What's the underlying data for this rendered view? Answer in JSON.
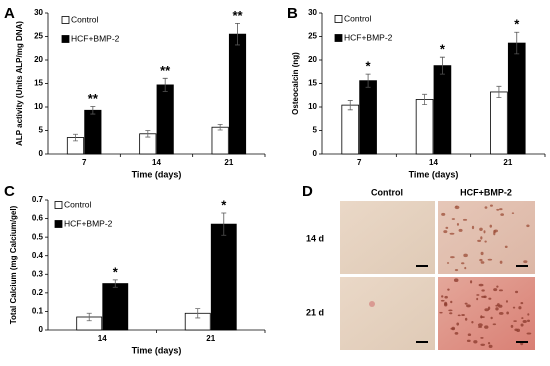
{
  "chart_data": [
    {
      "type": "bar",
      "panel_label": "A",
      "y_label": "ALP activity (Units ALP/mg DNA)",
      "x_label": "Time (days)",
      "categories": [
        "7",
        "14",
        "21"
      ],
      "series": [
        {
          "name": "Control",
          "color": "#ffffff",
          "values": [
            3.5,
            4.3,
            5.7
          ],
          "errors": [
            0.7,
            0.7,
            0.6
          ]
        },
        {
          "name": "HCF+BMP-2",
          "color": "#000000",
          "values": [
            9.3,
            14.7,
            25.5
          ],
          "errors": [
            0.8,
            1.4,
            2.3
          ]
        }
      ],
      "significance": [
        "**",
        "**",
        "**"
      ],
      "ylim": [
        0,
        30
      ],
      "yticks": [
        0,
        5,
        10,
        15,
        20,
        25,
        30
      ],
      "grid": false
    },
    {
      "type": "bar",
      "panel_label": "B",
      "y_label": "Osteocalcin (ng)",
      "x_label": "Time (days)",
      "categories": [
        "7",
        "14",
        "21"
      ],
      "series": [
        {
          "name": "Control",
          "color": "#ffffff",
          "values": [
            10.4,
            11.6,
            13.2
          ],
          "errors": [
            1.0,
            1.1,
            1.2
          ]
        },
        {
          "name": "HCF+BMP-2",
          "color": "#000000",
          "values": [
            15.6,
            18.8,
            23.6
          ],
          "errors": [
            1.4,
            1.8,
            2.3
          ]
        }
      ],
      "significance": [
        "*",
        "*",
        "*"
      ],
      "ylim": [
        0,
        30
      ],
      "yticks": [
        0,
        5,
        10,
        15,
        20,
        25,
        30
      ],
      "grid": false
    },
    {
      "type": "bar",
      "panel_label": "C",
      "y_label": "Total Calcium (mg Calcium/gel)",
      "x_label": "Time (days)",
      "categories": [
        "14",
        "21"
      ],
      "series": [
        {
          "name": "Control",
          "color": "#ffffff",
          "values": [
            0.07,
            0.09
          ],
          "errors": [
            0.02,
            0.025
          ]
        },
        {
          "name": "HCF+BMP-2",
          "color": "#000000",
          "values": [
            0.25,
            0.57
          ],
          "errors": [
            0.02,
            0.06
          ]
        }
      ],
      "significance": [
        "*",
        "*"
      ],
      "ylim": [
        0,
        0.7
      ],
      "yticks": [
        0,
        0.1,
        0.2,
        0.3,
        0.4,
        0.5,
        0.6,
        0.7
      ],
      "grid": false
    }
  ],
  "image_panel": {
    "panel_label": "D",
    "columns": [
      "Control",
      "HCF+BMP-2"
    ],
    "rows": [
      "14 d",
      "21 d"
    ]
  }
}
